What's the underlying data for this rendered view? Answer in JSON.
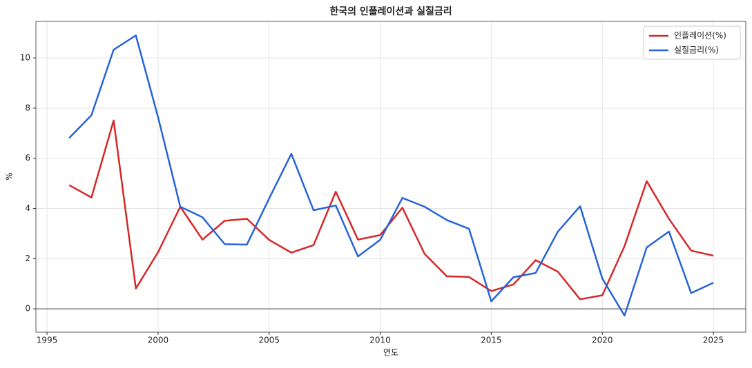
{
  "chart_data": {
    "type": "line",
    "title": "한국의 인플레이션과 실질금리",
    "x_label": "연도",
    "y_label": "%",
    "x": [
      1996,
      1997,
      1998,
      1999,
      2000,
      2001,
      2002,
      2003,
      2004,
      2005,
      2006,
      2007,
      2008,
      2009,
      2010,
      2011,
      2012,
      2013,
      2014,
      2015,
      2016,
      2017,
      2018,
      2019,
      2020,
      2021,
      2022,
      2023,
      2024,
      2025
    ],
    "series": [
      {
        "name": "인플레이션(%)",
        "color": "#d62728",
        "values": [
          4.93,
          4.44,
          7.51,
          0.81,
          2.26,
          4.07,
          2.76,
          3.51,
          3.59,
          2.75,
          2.24,
          2.54,
          4.67,
          2.76,
          2.94,
          4.03,
          2.19,
          1.3,
          1.27,
          0.71,
          0.97,
          1.94,
          1.48,
          0.38,
          0.54,
          2.5,
          5.09,
          3.59,
          2.32,
          2.12
        ]
      },
      {
        "name": "실질금리(%)",
        "color": "#2563d9",
        "values": [
          6.81,
          7.72,
          10.33,
          10.9,
          7.64,
          4.07,
          3.65,
          2.58,
          2.56,
          4.4,
          6.18,
          3.93,
          4.12,
          2.09,
          2.75,
          4.42,
          4.07,
          3.54,
          3.19,
          0.3,
          1.26,
          1.43,
          3.08,
          4.09,
          1.21,
          -0.27,
          2.45,
          3.08,
          0.63,
          1.04
        ]
      }
    ],
    "xlim": [
      1994.5,
      2026.46
    ],
    "ylim": [
      -0.93,
      11.46
    ],
    "xticks": [
      1995,
      2000,
      2005,
      2010,
      2015,
      2020,
      2025
    ],
    "yticks": [
      0,
      2,
      4,
      6,
      8,
      10
    ],
    "hline": 0,
    "grid": true,
    "legend": "upper right"
  }
}
